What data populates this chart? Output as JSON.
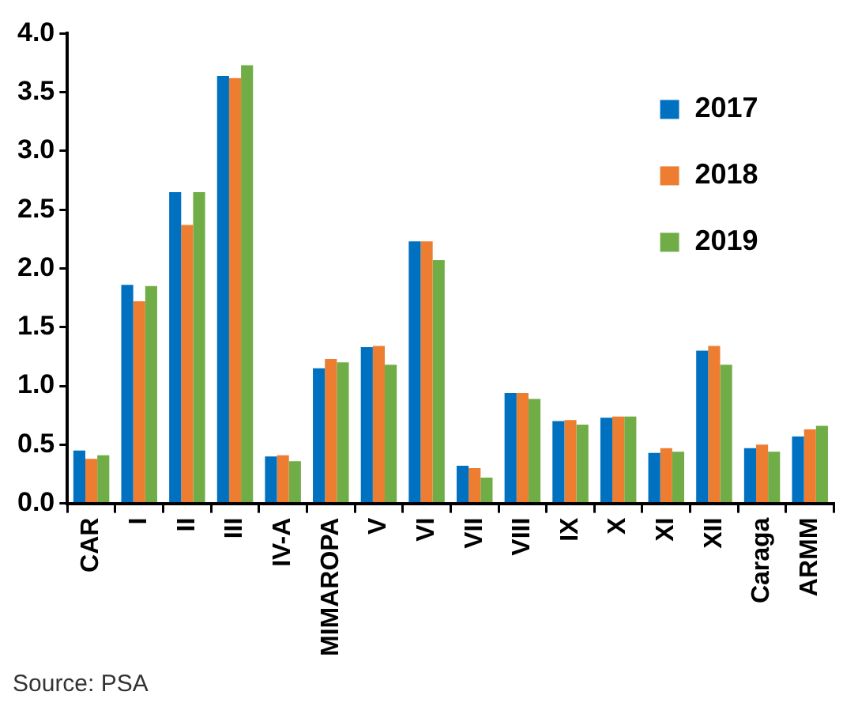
{
  "chart_data": {
    "type": "bar",
    "categories": [
      "CAR",
      "I",
      "II",
      "III",
      "IV-A",
      "MIMAROPA",
      "V",
      "VI",
      "VII",
      "VIII",
      "IX",
      "X",
      "XI",
      "XII",
      "Caraga",
      "ARMM"
    ],
    "series": [
      {
        "name": "2017",
        "color": "#0070c0",
        "values": [
          0.45,
          1.86,
          2.65,
          3.64,
          0.4,
          1.15,
          1.33,
          2.23,
          0.32,
          0.94,
          0.7,
          0.73,
          0.43,
          1.3,
          0.47,
          0.57
        ]
      },
      {
        "name": "2018",
        "color": "#ed7d31",
        "values": [
          0.38,
          1.72,
          2.37,
          3.62,
          0.41,
          1.23,
          1.34,
          2.23,
          0.3,
          0.94,
          0.71,
          0.74,
          0.47,
          1.34,
          0.5,
          0.63
        ]
      },
      {
        "name": "2019",
        "color": "#70ad47",
        "values": [
          0.41,
          1.85,
          2.65,
          3.73,
          0.36,
          1.2,
          1.18,
          2.07,
          0.22,
          0.89,
          0.67,
          0.74,
          0.44,
          1.18,
          0.44,
          0.66
        ]
      }
    ],
    "ylim": [
      0,
      4
    ],
    "yticks": [
      {
        "value": 0,
        "label": "0.0"
      },
      {
        "value": 0.5,
        "label": "0.5"
      },
      {
        "value": 1,
        "label": "1.0"
      },
      {
        "value": 1.5,
        "label": "1.5"
      },
      {
        "value": 2,
        "label": "2.0"
      },
      {
        "value": 2.5,
        "label": "2.5"
      },
      {
        "value": 3,
        "label": "3.0"
      },
      {
        "value": 3.5,
        "label": "3.5"
      },
      {
        "value": 4,
        "label": "4.0"
      }
    ],
    "grid": false,
    "legend": "top right",
    "annotations": [
      "Source: PSA"
    ]
  }
}
